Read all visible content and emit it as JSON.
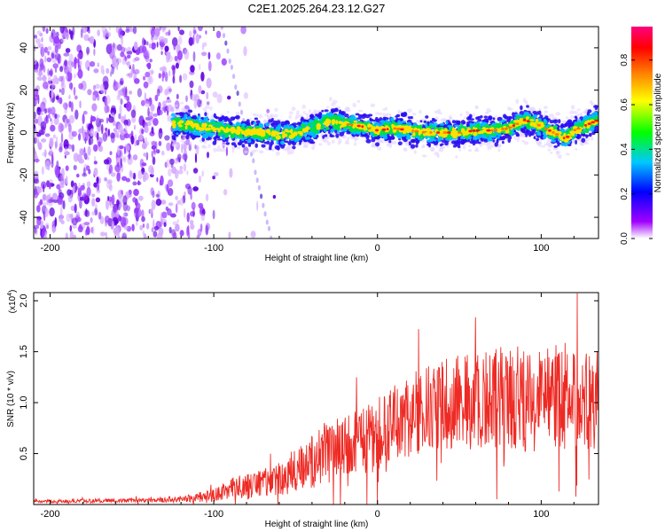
{
  "figure_title": "C2E1.2025.264.23.12.G27",
  "chart_data": [
    {
      "type": "heatmap",
      "title": "",
      "xlabel": "Height of straight line (km)",
      "ylabel": "Frequency (Hz)",
      "xlim": [
        -210,
        135
      ],
      "ylim": [
        -50,
        50
      ],
      "x_ticks": [
        -200,
        -100,
        0,
        100
      ],
      "y_ticks": [
        -40,
        -20,
        0,
        20,
        40
      ],
      "colorbar": {
        "label": "Normalized spectral amplitude",
        "range": [
          0,
          0.95
        ],
        "ticks": [
          0.0,
          0.2,
          0.4,
          0.6,
          0.8
        ],
        "colors": [
          "#ffffff",
          "#a000ff",
          "#0000ff",
          "#00c8ff",
          "#00ff00",
          "#ffff00",
          "#ff8000",
          "#ff0000",
          "#ff0080"
        ]
      },
      "regions": [
        {
          "name": "noise",
          "x_range": [
            -210,
            -95
          ],
          "freq_range": [
            -50,
            50
          ],
          "amplitude": 0.05
        },
        {
          "name": "signal",
          "x_range": [
            -125,
            135
          ],
          "amplitude": 0.7
        },
        {
          "name": "streak",
          "x_range": [
            -95,
            -65
          ],
          "amplitude": 0.1
        }
      ],
      "signal_track": {
        "x": [
          -125,
          -110,
          -100,
          -90,
          -80,
          -70,
          -60,
          -50,
          -40,
          -30,
          -20,
          -10,
          0,
          10,
          20,
          30,
          40,
          50,
          60,
          70,
          80,
          90,
          100,
          110,
          115,
          120,
          135
        ],
        "freq": [
          4,
          3,
          2,
          1,
          0,
          0,
          -1,
          0,
          2,
          5,
          4,
          3,
          1,
          2,
          1,
          0,
          0,
          0,
          1,
          1,
          2,
          6,
          3,
          -1,
          -3,
          1,
          6
        ]
      }
    },
    {
      "type": "line",
      "title": "",
      "xlabel": "Height of straight line (km)",
      "ylabel": "SNR (10 * v/v)",
      "y_multiplier": "(x10",
      "y_multiplier_exp": "4",
      "xlim": [
        -210,
        135
      ],
      "ylim": [
        0,
        20800
      ],
      "x_ticks": [
        -200,
        -100,
        0,
        100
      ],
      "y_ticks": [
        5000,
        10000,
        15000,
        20000
      ],
      "y_tick_labels": [
        "0.5",
        "1.0",
        "1.5",
        "2.0"
      ],
      "series": [
        {
          "name": "SNR",
          "color": "#ee2a24",
          "envelope": {
            "x": [
              -210,
              -150,
              -120,
              -100,
              -90,
              -80,
              -70,
              -60,
              -50,
              -40,
              -30,
              -20,
              -10,
              0,
              10,
              20,
              30,
              40,
              50,
              60,
              70,
              80,
              90,
              100,
              110,
              120,
              135
            ],
            "mean": [
              300,
              400,
              500,
              900,
              1600,
              1800,
              2200,
              2600,
              3400,
              4200,
              5000,
              5800,
              6200,
              6800,
              7800,
              8600,
              9300,
              9800,
              10200,
              10000,
              10400,
              10600,
              10300,
              10500,
              10700,
              10400,
              10200
            ],
            "amplitude": [
              150,
              200,
              300,
              600,
              1000,
              1200,
              1500,
              1800,
              2200,
              2600,
              3000,
              3200,
              3400,
              3600,
              3800,
              4000,
              4200,
              4400,
              4600,
              4800,
              5000,
              5200,
              5200,
              5200,
              5200,
              5000,
              5000
            ]
          }
        }
      ]
    }
  ]
}
